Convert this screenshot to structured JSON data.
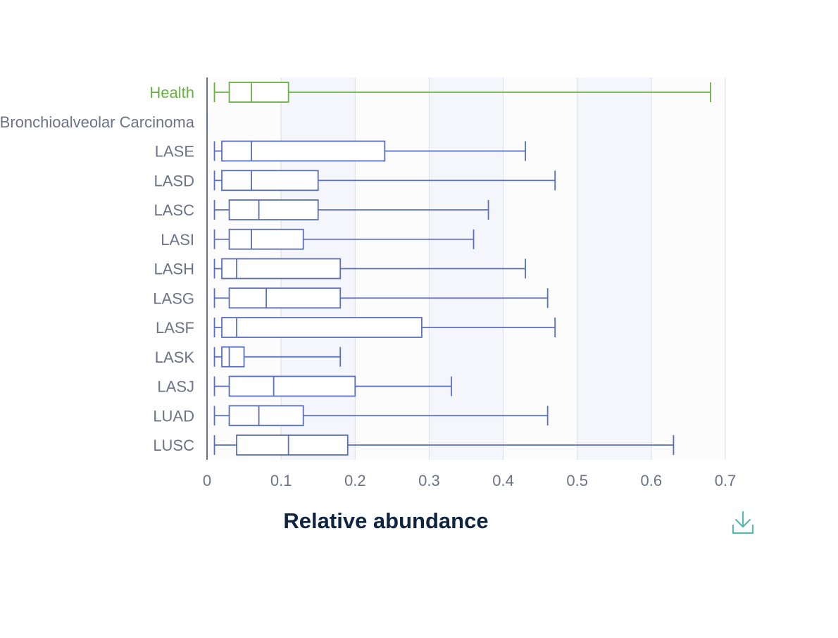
{
  "colors": {
    "health": "#6ab043",
    "disease": "#5a6fc0",
    "axis": "#6b7387",
    "xlabel": "#0e2440",
    "download": "#5bb7ad"
  },
  "icons": {
    "download": "download-icon"
  },
  "chart_data": {
    "type": "boxplot",
    "orientation": "horizontal",
    "title": "",
    "xlabel": "Relative abundance",
    "ylabel": "",
    "xlim": [
      0,
      0.7
    ],
    "xticks": [
      0,
      0.1,
      0.2,
      0.3,
      0.4,
      0.5,
      0.6,
      0.7
    ],
    "tick_labels": [
      "0",
      "0.1",
      "0.2",
      "0.3",
      "0.4",
      "0.5",
      "0.6",
      "0.7"
    ],
    "grid": true,
    "categories": [
      "Health",
      "Bronchioalveolar Carcinoma",
      "LASE",
      "LASD",
      "LASC",
      "LASI",
      "LASH",
      "LASG",
      "LASF",
      "LASK",
      "LASJ",
      "LUAD",
      "LUSC"
    ],
    "boxes": [
      {
        "name": "Health",
        "min": 0.01,
        "q1": 0.03,
        "median": 0.06,
        "q3": 0.11,
        "max": 0.68,
        "group": "health"
      },
      {
        "name": "Bronchioalveolar Carcinoma",
        "min": 0,
        "q1": 0,
        "median": 0,
        "q3": 0,
        "max": 0,
        "group": "disease"
      },
      {
        "name": "LASE",
        "min": 0.01,
        "q1": 0.02,
        "median": 0.06,
        "q3": 0.24,
        "max": 0.43,
        "group": "disease"
      },
      {
        "name": "LASD",
        "min": 0.01,
        "q1": 0.02,
        "median": 0.06,
        "q3": 0.15,
        "max": 0.47,
        "group": "disease"
      },
      {
        "name": "LASC",
        "min": 0.01,
        "q1": 0.03,
        "median": 0.07,
        "q3": 0.15,
        "max": 0.38,
        "group": "disease"
      },
      {
        "name": "LASI",
        "min": 0.01,
        "q1": 0.03,
        "median": 0.06,
        "q3": 0.13,
        "max": 0.36,
        "group": "disease"
      },
      {
        "name": "LASH",
        "min": 0.01,
        "q1": 0.02,
        "median": 0.04,
        "q3": 0.18,
        "max": 0.43,
        "group": "disease"
      },
      {
        "name": "LASG",
        "min": 0.01,
        "q1": 0.03,
        "median": 0.08,
        "q3": 0.18,
        "max": 0.46,
        "group": "disease"
      },
      {
        "name": "LASF",
        "min": 0.01,
        "q1": 0.02,
        "median": 0.04,
        "q3": 0.29,
        "max": 0.47,
        "group": "disease"
      },
      {
        "name": "LASK",
        "min": 0.01,
        "q1": 0.02,
        "median": 0.03,
        "q3": 0.05,
        "max": 0.18,
        "group": "disease"
      },
      {
        "name": "LASJ",
        "min": 0.01,
        "q1": 0.03,
        "median": 0.09,
        "q3": 0.2,
        "max": 0.33,
        "group": "disease"
      },
      {
        "name": "LUAD",
        "min": 0.01,
        "q1": 0.03,
        "median": 0.07,
        "q3": 0.13,
        "max": 0.46,
        "group": "disease"
      },
      {
        "name": "LUSC",
        "min": 0.01,
        "q1": 0.04,
        "median": 0.11,
        "q3": 0.19,
        "max": 0.63,
        "group": "disease"
      }
    ]
  }
}
